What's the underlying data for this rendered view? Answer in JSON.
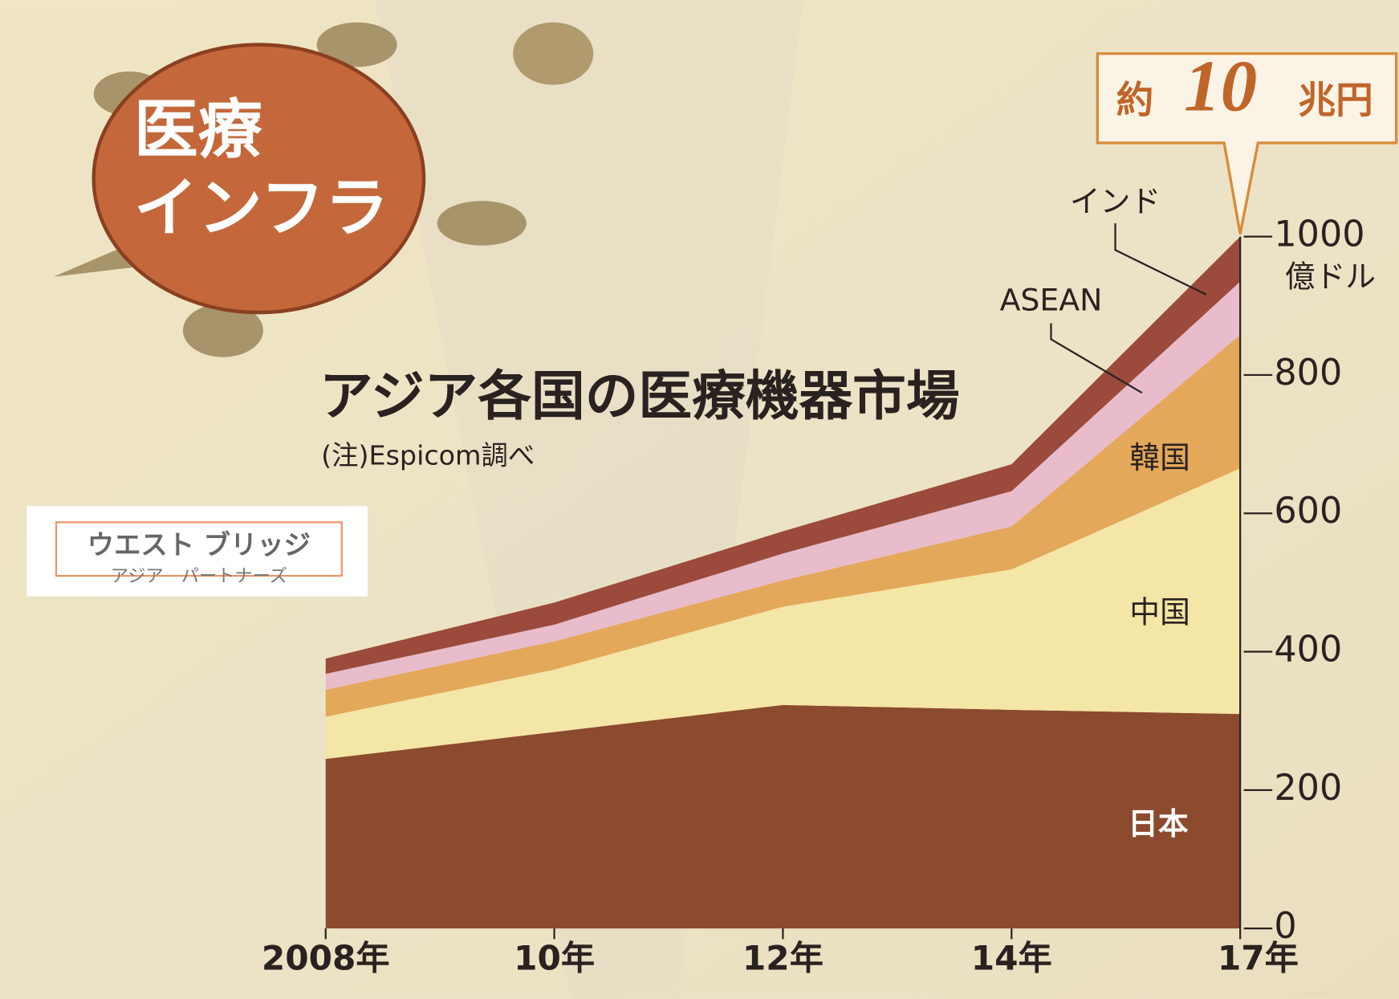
{
  "chart_data": {
    "type": "stacked_area",
    "title": "アジア各国の医療機器市場",
    "note": "(注)Espicom調べ",
    "y_unit": "億ドル",
    "categories": [
      "2008年",
      "10年",
      "12年",
      "14年",
      "17年"
    ],
    "series": [
      {
        "name": "日本",
        "color": "#8c4a2e",
        "values": [
          245,
          284,
          323,
          316,
          310
        ]
      },
      {
        "name": "中国",
        "color": "#f4e6a6",
        "values": [
          61,
          90,
          142,
          203,
          355
        ]
      },
      {
        "name": "韓国",
        "color": "#e3a85a",
        "values": [
          39,
          41,
          38,
          62,
          193
        ]
      },
      {
        "name": "ASEAN",
        "color": "#e8bccb",
        "values": [
          23,
          24,
          39,
          51,
          77
        ]
      },
      {
        "name": "インド",
        "color": "#9b4a3b",
        "values": [
          22,
          32,
          32,
          39,
          65
        ]
      }
    ],
    "ylim": [
      0,
      1000
    ],
    "yticks": [
      0,
      200,
      400,
      600,
      800,
      1000
    ],
    "callout": {
      "prefix": "約",
      "number": "10",
      "suffix": "兆円"
    }
  },
  "badge": {
    "line1": "医療",
    "line2": "インフラ"
  },
  "logo": {
    "name": "ウエスト ブリッジ",
    "sub": "アジア　パートナーズ"
  }
}
